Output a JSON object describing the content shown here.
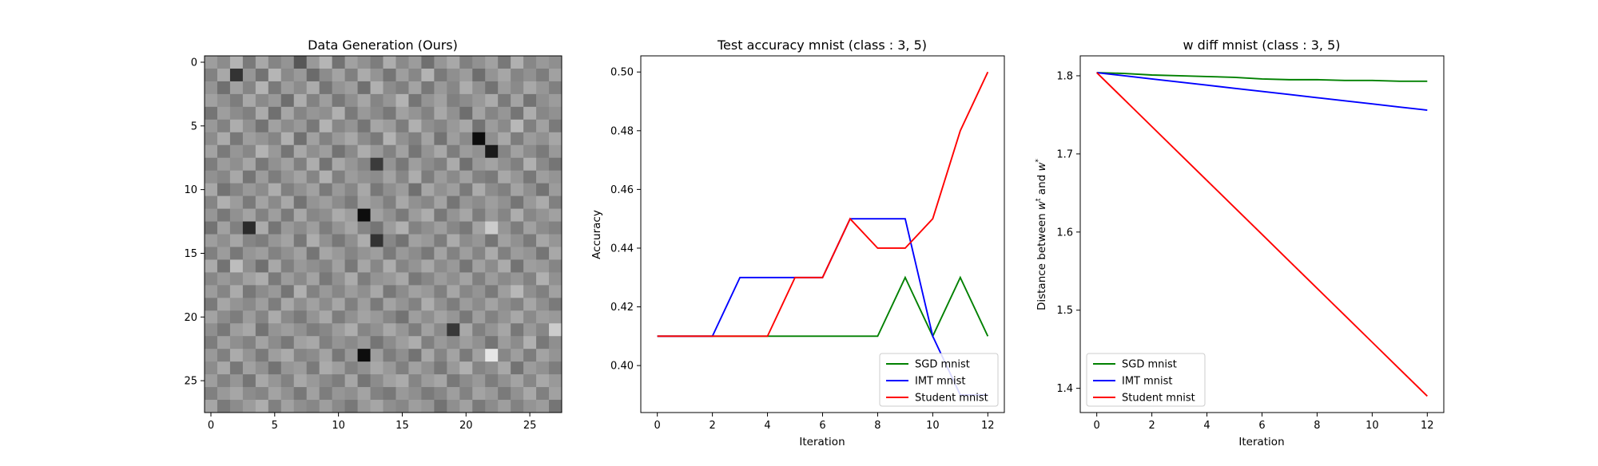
{
  "chart_data": [
    {
      "type": "heatmap",
      "title": "Data Generation (Ours)",
      "xlabel": "",
      "ylabel": "",
      "xticks": [
        "0",
        "5",
        "10",
        "15",
        "20",
        "25"
      ],
      "yticks": [
        "0",
        "5",
        "10",
        "15",
        "20",
        "25"
      ],
      "rows": 28,
      "cols": 28,
      "colormap": "gray",
      "values": [
        [
          0.62,
          0.55,
          0.7,
          0.48,
          0.66,
          0.52,
          0.58,
          0.34,
          0.6,
          0.71,
          0.45,
          0.63,
          0.57,
          0.49,
          0.68,
          0.54,
          0.61,
          0.44,
          0.59,
          0.66,
          0.5,
          0.57,
          0.63,
          0.47,
          0.69,
          0.53,
          0.6,
          0.56
        ],
        [
          0.51,
          0.66,
          0.2,
          0.59,
          0.45,
          0.71,
          0.54,
          0.6,
          0.42,
          0.55,
          0.64,
          0.5,
          0.67,
          0.58,
          0.46,
          0.62,
          0.53,
          0.7,
          0.48,
          0.56,
          0.61,
          0.43,
          0.58,
          0.65,
          0.52,
          0.57,
          0.49,
          0.63
        ],
        [
          0.58,
          0.44,
          0.63,
          0.52,
          0.7,
          0.48,
          0.61,
          0.55,
          0.67,
          0.46,
          0.58,
          0.62,
          0.44,
          0.69,
          0.55,
          0.5,
          0.64,
          0.47,
          0.6,
          0.53,
          0.68,
          0.57,
          0.45,
          0.61,
          0.54,
          0.66,
          0.59,
          0.5
        ],
        [
          0.63,
          0.57,
          0.49,
          0.66,
          0.54,
          0.6,
          0.43,
          0.68,
          0.51,
          0.62,
          0.47,
          0.56,
          0.65,
          0.52,
          0.59,
          0.7,
          0.46,
          0.58,
          0.63,
          0.5,
          0.55,
          0.6,
          0.67,
          0.48,
          0.64,
          0.45,
          0.56,
          0.61
        ],
        [
          0.46,
          0.62,
          0.55,
          0.5,
          0.67,
          0.44,
          0.65,
          0.52,
          0.59,
          0.56,
          0.69,
          0.48,
          0.6,
          0.54,
          0.47,
          0.63,
          0.58,
          0.51,
          0.66,
          0.57,
          0.43,
          0.64,
          0.52,
          0.59,
          0.46,
          0.68,
          0.53,
          0.57
        ],
        [
          0.6,
          0.51,
          0.68,
          0.57,
          0.45,
          0.63,
          0.55,
          0.6,
          0.47,
          0.7,
          0.53,
          0.58,
          0.46,
          0.65,
          0.61,
          0.49,
          0.69,
          0.56,
          0.52,
          0.6,
          0.66,
          0.45,
          0.61,
          0.54,
          0.72,
          0.5,
          0.63,
          0.48
        ],
        [
          0.55,
          0.67,
          0.47,
          0.62,
          0.58,
          0.52,
          0.69,
          0.44,
          0.63,
          0.51,
          0.6,
          0.66,
          0.55,
          0.48,
          0.7,
          0.57,
          0.5,
          0.64,
          0.45,
          0.62,
          0.54,
          0.05,
          0.56,
          0.66,
          0.49,
          0.61,
          0.57,
          0.65
        ],
        [
          0.64,
          0.48,
          0.59,
          0.53,
          0.7,
          0.6,
          0.46,
          0.66,
          0.56,
          0.62,
          0.45,
          0.54,
          0.68,
          0.6,
          0.51,
          0.63,
          0.46,
          0.58,
          0.66,
          0.49,
          0.61,
          0.57,
          0.1,
          0.52,
          0.63,
          0.55,
          0.48,
          0.6
        ],
        [
          0.49,
          0.61,
          0.56,
          0.65,
          0.47,
          0.57,
          0.63,
          0.5,
          0.68,
          0.45,
          0.66,
          0.59,
          0.52,
          0.23,
          0.58,
          0.47,
          0.62,
          0.55,
          0.5,
          0.67,
          0.44,
          0.6,
          0.64,
          0.57,
          0.5,
          0.69,
          0.54,
          0.46
        ],
        [
          0.57,
          0.53,
          0.66,
          0.46,
          0.61,
          0.49,
          0.58,
          0.64,
          0.52,
          0.69,
          0.5,
          0.61,
          0.57,
          0.55,
          0.64,
          0.53,
          0.68,
          0.49,
          0.61,
          0.54,
          0.63,
          0.51,
          0.48,
          0.66,
          0.59,
          0.47,
          0.62,
          0.58
        ],
        [
          0.66,
          0.45,
          0.52,
          0.6,
          0.55,
          0.68,
          0.5,
          0.57,
          0.63,
          0.48,
          0.6,
          0.53,
          0.66,
          0.47,
          0.56,
          0.61,
          0.44,
          0.65,
          0.57,
          0.62,
          0.48,
          0.67,
          0.55,
          0.5,
          0.64,
          0.56,
          0.45,
          0.61
        ],
        [
          0.52,
          0.69,
          0.61,
          0.48,
          0.64,
          0.54,
          0.66,
          0.45,
          0.58,
          0.62,
          0.55,
          0.48,
          0.63,
          0.59,
          0.5,
          0.66,
          0.57,
          0.53,
          0.64,
          0.46,
          0.59,
          0.55,
          0.62,
          0.57,
          0.46,
          0.6,
          0.67,
          0.5
        ],
        [
          0.59,
          0.47,
          0.57,
          0.64,
          0.51,
          0.62,
          0.48,
          0.66,
          0.53,
          0.56,
          0.67,
          0.62,
          0.05,
          0.63,
          0.57,
          0.48,
          0.61,
          0.68,
          0.47,
          0.58,
          0.65,
          0.49,
          0.6,
          0.52,
          0.68,
          0.53,
          0.58,
          0.63
        ],
        [
          0.45,
          0.63,
          0.5,
          0.17,
          0.67,
          0.46,
          0.6,
          0.55,
          0.62,
          0.49,
          0.58,
          0.65,
          0.52,
          0.46,
          0.61,
          0.69,
          0.51,
          0.56,
          0.62,
          0.53,
          0.47,
          0.64,
          0.8,
          0.59,
          0.49,
          0.63,
          0.55,
          0.51
        ],
        [
          0.62,
          0.56,
          0.65,
          0.52,
          0.49,
          0.59,
          0.64,
          0.47,
          0.68,
          0.57,
          0.47,
          0.56,
          0.68,
          0.2,
          0.53,
          0.45,
          0.63,
          0.6,
          0.49,
          0.67,
          0.55,
          0.59,
          0.46,
          0.63,
          0.57,
          0.48,
          0.65,
          0.59
        ],
        [
          0.5,
          0.61,
          0.47,
          0.59,
          0.62,
          0.51,
          0.57,
          0.63,
          0.46,
          0.65,
          0.6,
          0.52,
          0.58,
          0.62,
          0.48,
          0.6,
          0.55,
          0.47,
          0.64,
          0.51,
          0.62,
          0.52,
          0.67,
          0.5,
          0.61,
          0.58,
          0.46,
          0.66
        ],
        [
          0.67,
          0.45,
          0.74,
          0.56,
          0.44,
          0.66,
          0.5,
          0.6,
          0.56,
          0.52,
          0.63,
          0.47,
          0.65,
          0.53,
          0.68,
          0.52,
          0.58,
          0.66,
          0.55,
          0.6,
          0.46,
          0.63,
          0.55,
          0.67,
          0.45,
          0.62,
          0.6,
          0.52
        ],
        [
          0.53,
          0.6,
          0.55,
          0.63,
          0.68,
          0.48,
          0.61,
          0.54,
          0.64,
          0.47,
          0.57,
          0.67,
          0.49,
          0.58,
          0.6,
          0.66,
          0.47,
          0.53,
          0.61,
          0.56,
          0.64,
          0.5,
          0.61,
          0.54,
          0.59,
          0.51,
          0.69,
          0.57
        ],
        [
          0.61,
          0.52,
          0.67,
          0.47,
          0.55,
          0.6,
          0.46,
          0.69,
          0.51,
          0.6,
          0.53,
          0.61,
          0.56,
          0.66,
          0.47,
          0.55,
          0.63,
          0.6,
          0.5,
          0.65,
          0.53,
          0.58,
          0.48,
          0.62,
          0.72,
          0.56,
          0.5,
          0.63
        ],
        [
          0.48,
          0.65,
          0.58,
          0.54,
          0.62,
          0.49,
          0.66,
          0.56,
          0.63,
          0.55,
          0.65,
          0.5,
          0.62,
          0.48,
          0.64,
          0.58,
          0.51,
          0.68,
          0.57,
          0.49,
          0.61,
          0.55,
          0.64,
          0.56,
          0.51,
          0.65,
          0.56,
          0.48
        ],
        [
          0.64,
          0.55,
          0.49,
          0.61,
          0.52,
          0.67,
          0.54,
          0.48,
          0.58,
          0.66,
          0.49,
          0.57,
          0.64,
          0.6,
          0.53,
          0.45,
          0.62,
          0.56,
          0.64,
          0.59,
          0.47,
          0.62,
          0.51,
          0.58,
          0.66,
          0.54,
          0.62,
          0.6
        ],
        [
          0.56,
          0.47,
          0.62,
          0.66,
          0.45,
          0.58,
          0.62,
          0.57,
          0.49,
          0.53,
          0.61,
          0.68,
          0.52,
          0.57,
          0.66,
          0.59,
          0.49,
          0.63,
          0.54,
          0.22,
          0.66,
          0.5,
          0.58,
          0.65,
          0.47,
          0.6,
          0.53,
          0.8
        ],
        [
          0.49,
          0.63,
          0.56,
          0.51,
          0.64,
          0.55,
          0.47,
          0.63,
          0.66,
          0.5,
          0.58,
          0.54,
          0.6,
          0.46,
          0.55,
          0.62,
          0.68,
          0.5,
          0.6,
          0.55,
          0.62,
          0.57,
          0.46,
          0.61,
          0.55,
          0.69,
          0.47,
          0.56
        ],
        [
          0.6,
          0.5,
          0.67,
          0.58,
          0.48,
          0.62,
          0.67,
          0.52,
          0.55,
          0.64,
          0.47,
          0.6,
          0.05,
          0.62,
          0.49,
          0.56,
          0.45,
          0.66,
          0.52,
          0.64,
          0.48,
          0.63,
          0.9,
          0.53,
          0.62,
          0.49,
          0.64,
          0.58
        ],
        [
          0.55,
          0.66,
          0.47,
          0.63,
          0.57,
          0.45,
          0.59,
          0.61,
          0.48,
          0.67,
          0.62,
          0.51,
          0.57,
          0.66,
          0.6,
          0.5,
          0.63,
          0.57,
          0.47,
          0.6,
          0.69,
          0.52,
          0.56,
          0.66,
          0.45,
          0.61,
          0.57,
          0.49
        ],
        [
          0.62,
          0.51,
          0.59,
          0.46,
          0.66,
          0.59,
          0.51,
          0.66,
          0.6,
          0.54,
          0.49,
          0.65,
          0.46,
          0.55,
          0.63,
          0.67,
          0.52,
          0.61,
          0.65,
          0.47,
          0.55,
          0.6,
          0.49,
          0.57,
          0.64,
          0.53,
          0.66,
          0.6
        ],
        [
          0.5,
          0.6,
          0.65,
          0.55,
          0.52,
          0.64,
          0.57,
          0.47,
          0.63,
          0.49,
          0.59,
          0.56,
          0.64,
          0.51,
          0.47,
          0.6,
          0.56,
          0.48,
          0.53,
          0.62,
          0.51,
          0.64,
          0.6,
          0.48,
          0.57,
          0.66,
          0.5,
          0.63
        ],
        [
          0.65,
          0.48,
          0.55,
          0.61,
          0.68,
          0.5,
          0.63,
          0.56,
          0.53,
          0.62,
          0.54,
          0.47,
          0.6,
          0.65,
          0.56,
          0.53,
          0.62,
          0.59,
          0.45,
          0.56,
          0.63,
          0.48,
          0.55,
          0.62,
          0.51,
          0.58,
          0.61,
          0.46
        ]
      ]
    },
    {
      "type": "line",
      "title": "Test accuracy mnist (class : 3, 5)",
      "xlabel": "Iteration",
      "ylabel": "Accuracy",
      "xlim": [
        -0.6,
        12.6
      ],
      "ylim": [
        0.384,
        0.5055
      ],
      "xticks": [
        0,
        2,
        4,
        6,
        8,
        10,
        12
      ],
      "xtick_labels": [
        "0",
        "2",
        "4",
        "6",
        "8",
        "10",
        "12"
      ],
      "yticks": [
        0.4,
        0.42,
        0.44,
        0.46,
        0.48,
        0.5
      ],
      "ytick_labels": [
        "0.40",
        "0.42",
        "0.44",
        "0.46",
        "0.48",
        "0.50"
      ],
      "x": [
        0,
        1,
        2,
        3,
        4,
        5,
        6,
        7,
        8,
        9,
        10,
        11,
        12
      ],
      "series": [
        {
          "name": "SGD mnist",
          "color": "#008000",
          "values": [
            0.41,
            0.41,
            0.41,
            0.41,
            0.41,
            0.41,
            0.41,
            0.41,
            0.41,
            0.43,
            0.41,
            0.43,
            0.41
          ]
        },
        {
          "name": "IMT mnist",
          "color": "#0000ff",
          "values": [
            0.41,
            0.41,
            0.41,
            0.43,
            0.43,
            0.43,
            0.43,
            0.45,
            0.45,
            0.45,
            0.41,
            0.39,
            0.39
          ]
        },
        {
          "name": "Student mnist",
          "color": "#ff0000",
          "values": [
            0.41,
            0.41,
            0.41,
            0.41,
            0.41,
            0.43,
            0.43,
            0.45,
            0.44,
            0.44,
            0.45,
            0.48,
            0.5
          ]
        }
      ],
      "legend": "lower right"
    },
    {
      "type": "line",
      "title": "w diff mnist (class : 3, 5)",
      "xlabel": "Iteration",
      "ylabel": "Distance between w^t and w^*",
      "ylabel_parts": {
        "text1": "Distance between ",
        "v1": "w",
        "s1": "t",
        "text2": " and ",
        "v2": "w",
        "s2": "*"
      },
      "xlim": [
        -0.6,
        12.6
      ],
      "ylim": [
        1.369,
        1.8255
      ],
      "xticks": [
        0,
        2,
        4,
        6,
        8,
        10,
        12
      ],
      "xtick_labels": [
        "0",
        "2",
        "4",
        "6",
        "8",
        "10",
        "12"
      ],
      "yticks": [
        1.4,
        1.5,
        1.6,
        1.7,
        1.8
      ],
      "ytick_labels": [
        "1.4",
        "1.5",
        "1.6",
        "1.7",
        "1.8"
      ],
      "x": [
        0,
        1,
        2,
        3,
        4,
        5,
        6,
        7,
        8,
        9,
        10,
        11,
        12
      ],
      "series": [
        {
          "name": "SGD mnist",
          "color": "#008000",
          "values": [
            1.804,
            1.803,
            1.801,
            1.8,
            1.799,
            1.798,
            1.796,
            1.795,
            1.795,
            1.794,
            1.794,
            1.793,
            1.793
          ]
        },
        {
          "name": "IMT mnist",
          "color": "#0000ff",
          "values": [
            1.804,
            1.8,
            1.796,
            1.792,
            1.788,
            1.784,
            1.78,
            1.776,
            1.772,
            1.768,
            1.764,
            1.76,
            1.756
          ]
        },
        {
          "name": "Student mnist",
          "color": "#ff0000",
          "values": [
            1.804,
            1.7695,
            1.735,
            1.7005,
            1.666,
            1.6315,
            1.597,
            1.5625,
            1.528,
            1.4935,
            1.459,
            1.4245,
            1.39
          ]
        }
      ],
      "legend": "lower left"
    }
  ]
}
